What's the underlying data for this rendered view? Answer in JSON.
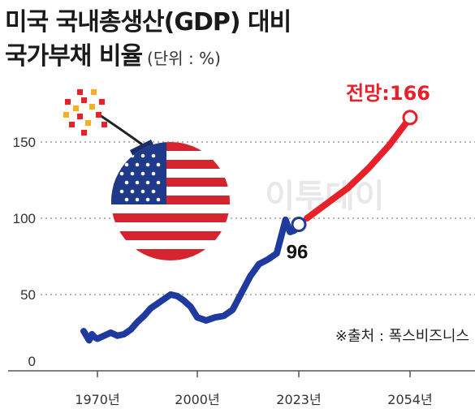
{
  "header": {
    "title_line1": "미국 국내총생산(GDP) 대비",
    "title_line2": "국가부채 비율",
    "unit": "(단위 : %)"
  },
  "source": "※출처 : 폭스비즈니스",
  "watermark": "이투데이",
  "colors": {
    "historical": "#1f3a9e",
    "forecast": "#e8202a",
    "grid": "#888888"
  },
  "chart_data": {
    "type": "line",
    "title": "미국 국내총생산(GDP) 대비 국가부채 비율",
    "unit": "%",
    "ylim": [
      0,
      175
    ],
    "yticks": [
      0,
      50,
      100,
      150
    ],
    "xticks": [
      "1970년",
      "2000년",
      "2023년",
      "2054년"
    ],
    "grid": true,
    "series": [
      {
        "name": "historical",
        "color": "#1f3a9e",
        "x": [
          1960,
          1962,
          1964,
          1966,
          1968,
          1970,
          1972,
          1974,
          1976,
          1978,
          1980,
          1982,
          1984,
          1986,
          1988,
          1990,
          1992,
          1994,
          1996,
          1998,
          2000,
          2002,
          2004,
          2006,
          2008,
          2010,
          2012,
          2014,
          2016,
          2018,
          2020,
          2021,
          2022,
          2023
        ],
        "y": [
          26,
          23,
          20,
          24,
          22,
          21,
          23,
          25,
          23,
          24,
          27,
          32,
          36,
          41,
          44,
          47,
          50,
          49,
          46,
          42,
          35,
          33,
          35,
          36,
          40,
          51,
          62,
          70,
          73,
          77,
          99,
          91,
          92,
          96
        ]
      },
      {
        "name": "forecast",
        "color": "#e8202a",
        "x": [
          2024,
          2030,
          2036,
          2042,
          2048,
          2054
        ],
        "y": [
          100,
          110,
          120,
          133,
          148,
          166
        ]
      }
    ],
    "annotations": [
      {
        "label": "96",
        "x": 2023,
        "y": 96
      },
      {
        "label": "전망:166",
        "x": 2054,
        "y": 166
      }
    ]
  }
}
